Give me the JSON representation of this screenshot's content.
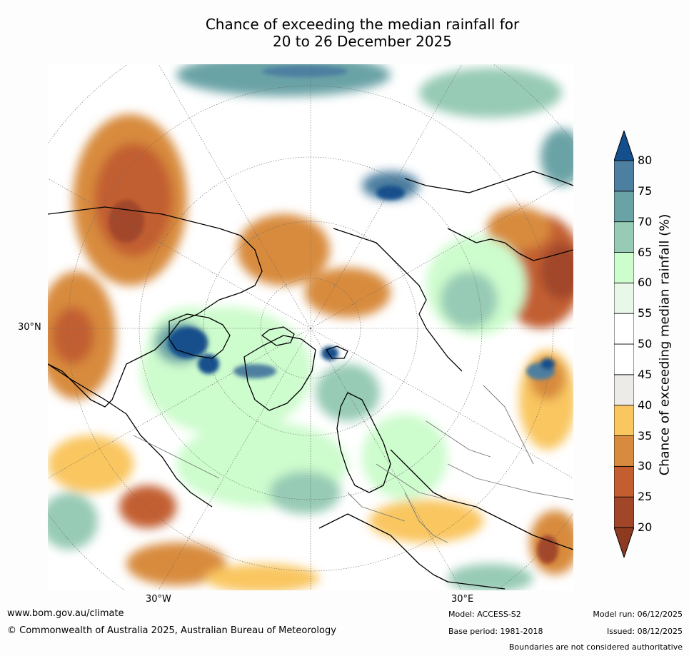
{
  "title": {
    "line1": "Chance of exceeding the median rainfall for",
    "line2": "20 to 26 December 2025"
  },
  "map": {
    "lat_label": "30°N",
    "lon_labels": [
      "30°W",
      "30°E"
    ]
  },
  "colorbar": {
    "label": "Chance of exceeding median rainfall (%)",
    "ticks": [
      "20",
      "25",
      "30",
      "35",
      "40",
      "45",
      "50",
      "55",
      "60",
      "65",
      "70",
      "75",
      "80"
    ],
    "colors": [
      "#a2462a",
      "#c25e30",
      "#d88b3e",
      "#f9c660",
      "#ecebe7",
      "#ffffff",
      "#ffffff",
      "#e9f7e9",
      "#cdfccd",
      "#97cbb5",
      "#6aa3a6",
      "#4d7fa0",
      "#124f8c"
    ],
    "under_color": "#8e3a21",
    "over_color": "#124f8c"
  },
  "footer": {
    "website": "www.bom.gov.au/climate",
    "copyright": "© Commonwealth of Australia 2025, Australian Bureau of Meteorology",
    "model": "Model: ACCESS-S2",
    "base_period": "Base period: 1981-2018",
    "model_run": "Model run: 06/12/2025",
    "issued": "Issued: 08/12/2025",
    "disclaimer": "Boundaries are not considered authoritative"
  }
}
